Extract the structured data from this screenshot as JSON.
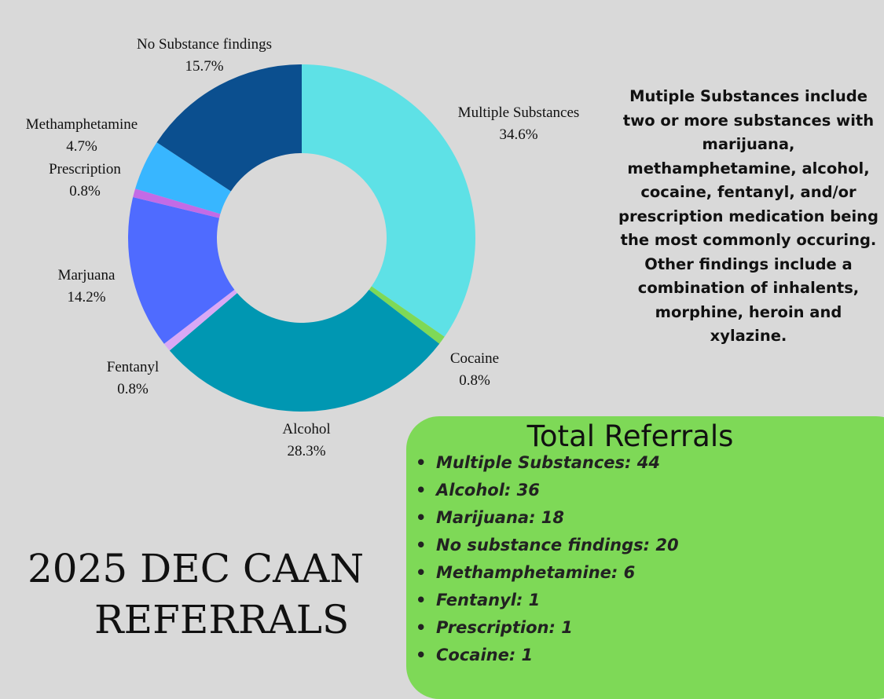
{
  "chart_data": {
    "type": "donut",
    "categories": [
      "Multiple Substances",
      "Cocaine",
      "Alcohol",
      "Fentanyl",
      "Marjuana",
      "Prescription",
      "Methamphetamine",
      "No Substance findings"
    ],
    "values": [
      34.6,
      0.8,
      28.3,
      0.8,
      14.2,
      0.8,
      4.7,
      15.7
    ],
    "value_labels": [
      "34.6%",
      "0.8%",
      "28.3%",
      "0.8%",
      "14.2%",
      "0.8%",
      "4.7%",
      "15.7%"
    ],
    "colors": [
      "#5ee1e6",
      "#7ed957",
      "#0097b2",
      "#d9a8f5",
      "#4f6bff",
      "#c36be6",
      "#38b6ff",
      "#0b4f8f"
    ]
  },
  "note": "Mutiple Substances include two or more substances with marijuana, methamphetamine, alcohol, cocaine, fentanyl, and/or prescription medication being the most commonly occuring. Other findings include a combination of inhalents, morphine, heroin and xylazine.",
  "totals": {
    "title": "Total Referrals",
    "items": [
      "Multiple Substances: 44",
      "Alcohol: 36",
      "Marijuana: 18",
      "No substance findings: 20",
      "Methamphetamine: 6",
      "Fentanyl: 1",
      "Prescription: 1",
      "Cocaine: 1"
    ]
  },
  "title": [
    "2025 DEC CAAN",
    "REFERRALS"
  ]
}
